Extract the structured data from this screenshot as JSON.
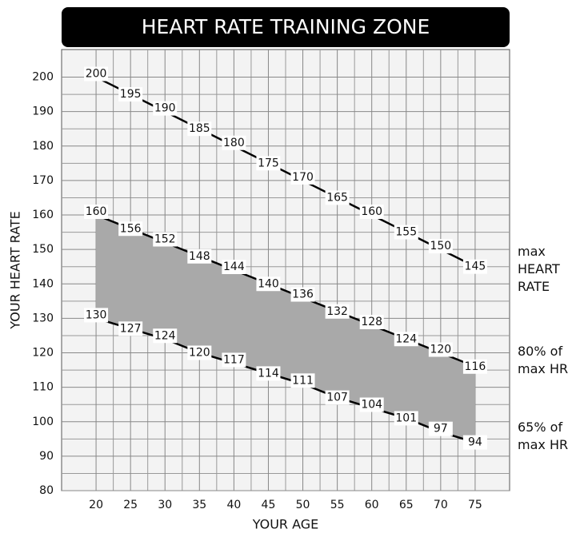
{
  "chart_data": {
    "type": "line",
    "title": "HEART RATE TRAINING ZONE",
    "x_label": "YOUR AGE",
    "y_label": "YOUR HEART RATE",
    "x": [
      20,
      25,
      30,
      35,
      40,
      45,
      50,
      55,
      60,
      65,
      70,
      75
    ],
    "series": [
      {
        "name": "max HEART RATE",
        "color": "#000000",
        "values": [
          200,
          195,
          190,
          185,
          180,
          175,
          170,
          165,
          160,
          155,
          150,
          145
        ]
      },
      {
        "name": "80% of max HR",
        "color": "#000000",
        "values": [
          160,
          156,
          152,
          148,
          144,
          140,
          136,
          132,
          128,
          124,
          120,
          116
        ]
      },
      {
        "name": "65% of max HR",
        "color": "#000000",
        "values": [
          130,
          127,
          124,
          120,
          117,
          114,
          111,
          107,
          104,
          101,
          97,
          94
        ]
      }
    ],
    "zone_fill": "#a9a9a9",
    "xlim": [
      15,
      80
    ],
    "xticks": [
      20,
      25,
      30,
      35,
      40,
      45,
      50,
      55,
      60,
      65,
      70,
      75
    ],
    "ylim": [
      80,
      208
    ],
    "yticks": [
      80,
      90,
      100,
      110,
      120,
      130,
      140,
      150,
      160,
      170,
      180,
      190,
      200
    ],
    "grid": true,
    "minor_grid": true
  }
}
